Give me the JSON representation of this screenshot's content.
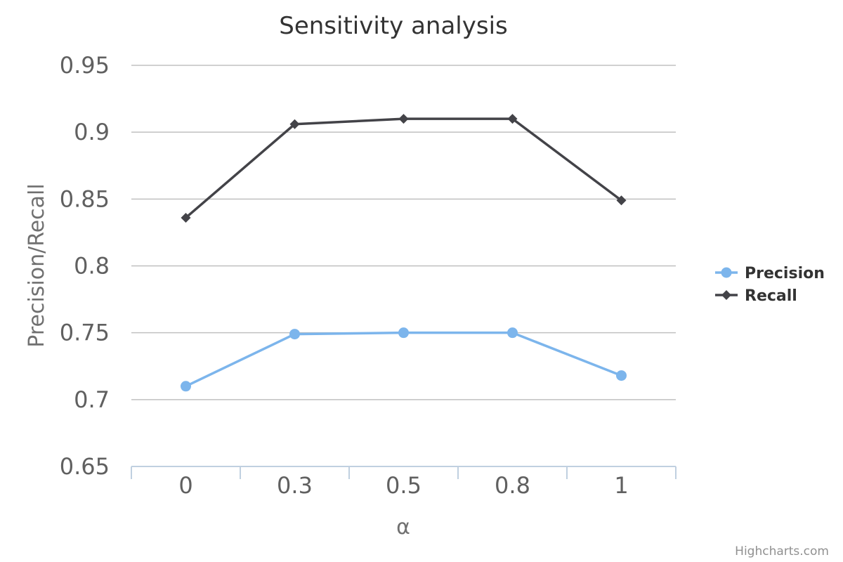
{
  "chart_data": {
    "type": "line",
    "title": "Sensitivity analysis",
    "xlabel": "α",
    "ylabel": "Precision/Recall",
    "categories": [
      "0",
      "0.3",
      "0.5",
      "0.8",
      "1"
    ],
    "ylim": [
      0.65,
      0.95
    ],
    "yticks": [
      "0.65",
      "0.7",
      "0.75",
      "0.8",
      "0.85",
      "0.9",
      "0.95"
    ],
    "grid": true,
    "legend_position": "right",
    "series": [
      {
        "name": "Precision",
        "values": [
          0.71,
          0.749,
          0.75,
          0.75,
          0.718
        ],
        "color": "#7cb5ec",
        "marker": "circle"
      },
      {
        "name": "Recall",
        "values": [
          0.836,
          0.906,
          0.91,
          0.91,
          0.849
        ],
        "color": "#434348",
        "marker": "diamond"
      }
    ],
    "credits": "Highcharts.com"
  }
}
